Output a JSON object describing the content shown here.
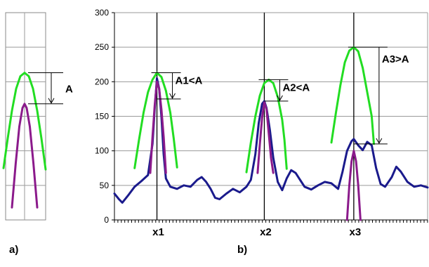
{
  "chart_data": [
    {
      "panel": "a)",
      "type": "line",
      "ylim": [
        0,
        300
      ],
      "series": [
        {
          "color": "#22dd22",
          "points": [
            [
              -1.0,
              75
            ],
            [
              -0.8,
              118
            ],
            [
              -0.6,
              158
            ],
            [
              -0.4,
              190
            ],
            [
              -0.2,
              208
            ],
            [
              0,
              213
            ],
            [
              0.2,
              208
            ],
            [
              0.4,
              190
            ],
            [
              0.6,
              158
            ],
            [
              0.8,
              118
            ],
            [
              1.0,
              73
            ]
          ]
        },
        {
          "color": "#8b1a8b",
          "points": [
            [
              -0.6,
              18
            ],
            [
              -0.42,
              82
            ],
            [
              -0.25,
              135
            ],
            [
              -0.1,
              162
            ],
            [
              0,
              168
            ],
            [
              0.1,
              162
            ],
            [
              0.25,
              135
            ],
            [
              0.42,
              82
            ],
            [
              0.6,
              18
            ]
          ]
        }
      ],
      "annotations": [
        {
          "text": "A",
          "level_high": 213,
          "level_low": 168
        }
      ]
    },
    {
      "panel": "b)",
      "type": "line",
      "ylim": [
        0,
        300
      ],
      "yticks": [
        "0",
        "50",
        "100",
        "150",
        "200",
        "250",
        "300"
      ],
      "xlabels": [
        {
          "text": "x1",
          "x": 19
        },
        {
          "text": "x2",
          "x": 67
        },
        {
          "text": "x3",
          "x": 107
        }
      ],
      "xlim": [
        0,
        140
      ],
      "series": [
        {
          "color": "#1a1a8c",
          "points": [
            [
              0,
              38
            ],
            [
              2,
              30
            ],
            [
              3.5,
              25
            ],
            [
              6,
              35
            ],
            [
              9,
              48
            ],
            [
              12,
              56
            ],
            [
              15,
              65
            ],
            [
              17,
              110
            ],
            [
              18,
              160
            ],
            [
              19,
              205
            ],
            [
              20,
              190
            ],
            [
              21,
              150
            ],
            [
              22,
              95
            ],
            [
              23,
              60
            ],
            [
              25,
              48
            ],
            [
              28,
              45
            ],
            [
              31,
              50
            ],
            [
              34,
              48
            ],
            [
              37,
              58
            ],
            [
              39,
              62
            ],
            [
              41,
              55
            ],
            [
              43,
              45
            ],
            [
              45,
              32
            ],
            [
              47,
              30
            ],
            [
              50,
              38
            ],
            [
              53,
              45
            ],
            [
              56,
              40
            ],
            [
              59,
              48
            ],
            [
              61,
              58
            ],
            [
              63,
              95
            ],
            [
              64.5,
              140
            ],
            [
              66,
              168
            ],
            [
              67,
              172
            ],
            [
              68,
              162
            ],
            [
              69.5,
              130
            ],
            [
              71,
              90
            ],
            [
              73,
              55
            ],
            [
              75,
              43
            ],
            [
              77,
              60
            ],
            [
              79,
              72
            ],
            [
              81,
              68
            ],
            [
              83,
              58
            ],
            [
              85,
              48
            ],
            [
              88,
              44
            ],
            [
              91,
              50
            ],
            [
              94,
              55
            ],
            [
              97,
              53
            ],
            [
              100,
              45
            ],
            [
              102,
              70
            ],
            [
              104,
              100
            ],
            [
              106,
              114
            ],
            [
              107,
              117
            ],
            [
              109,
              108
            ],
            [
              111,
              101
            ],
            [
              113,
              113
            ],
            [
              115,
              108
            ],
            [
              117,
              75
            ],
            [
              119,
              52
            ],
            [
              121,
              48
            ],
            [
              124,
              62
            ],
            [
              126,
              77
            ],
            [
              128,
              70
            ],
            [
              131,
              55
            ],
            [
              134,
              48
            ],
            [
              137,
              50
            ],
            [
              140,
              47
            ]
          ]
        },
        {
          "color": "#22dd22",
          "points": [
            [
              9,
              75
            ],
            [
              11,
              116
            ],
            [
              13,
              155
            ],
            [
              15,
              185
            ],
            [
              17,
              203
            ],
            [
              19,
              213
            ],
            [
              21,
              207
            ],
            [
              23,
              187
            ],
            [
              25,
              155
            ],
            [
              26.5,
              118
            ],
            [
              28,
              76
            ]
          ]
        },
        {
          "color": "#22dd22",
          "points": [
            [
              59,
              69
            ],
            [
              61,
              112
            ],
            [
              63,
              150
            ],
            [
              65,
              180
            ],
            [
              67,
              198
            ],
            [
              69,
              203
            ],
            [
              71,
              198
            ],
            [
              73,
              178
            ],
            [
              75,
              145
            ],
            [
              76,
              116
            ],
            [
              77,
              74
            ]
          ]
        },
        {
          "color": "#22dd22",
          "points": [
            [
              97,
              112
            ],
            [
              99,
              155
            ],
            [
              101,
              195
            ],
            [
              103,
              228
            ],
            [
              105,
              245
            ],
            [
              107,
              250
            ],
            [
              109,
              244
            ],
            [
              111,
              220
            ],
            [
              113,
              185
            ],
            [
              115,
              150
            ],
            [
              116,
              110
            ]
          ]
        },
        {
          "color": "#8b1a8b",
          "points": [
            [
              16,
              68
            ],
            [
              17,
              120
            ],
            [
              18,
              165
            ],
            [
              19,
              200
            ],
            [
              20,
              190
            ],
            [
              21,
              160
            ],
            [
              22,
              120
            ],
            [
              23,
              68
            ]
          ]
        },
        {
          "color": "#8b1a8b",
          "points": [
            [
              64,
              68
            ],
            [
              65,
              110
            ],
            [
              66,
              148
            ],
            [
              67,
              170
            ],
            [
              68,
              160
            ],
            [
              69,
              125
            ],
            [
              70,
              90
            ],
            [
              71,
              68
            ]
          ]
        },
        {
          "color": "#8b1a8b",
          "points": [
            [
              104,
              0
            ],
            [
              105,
              50
            ],
            [
              106,
              85
            ],
            [
              107,
              100
            ],
            [
              108,
              85
            ],
            [
              109,
              50
            ],
            [
              110,
              0
            ]
          ]
        }
      ],
      "annotations": [
        {
          "text": "A1<A",
          "level_high": 213,
          "level_low": 175
        },
        {
          "text": "A2<A",
          "level_high": 203,
          "level_low": 172
        },
        {
          "text": "A3>A",
          "level_high": 250,
          "level_low": 110
        }
      ]
    }
  ]
}
